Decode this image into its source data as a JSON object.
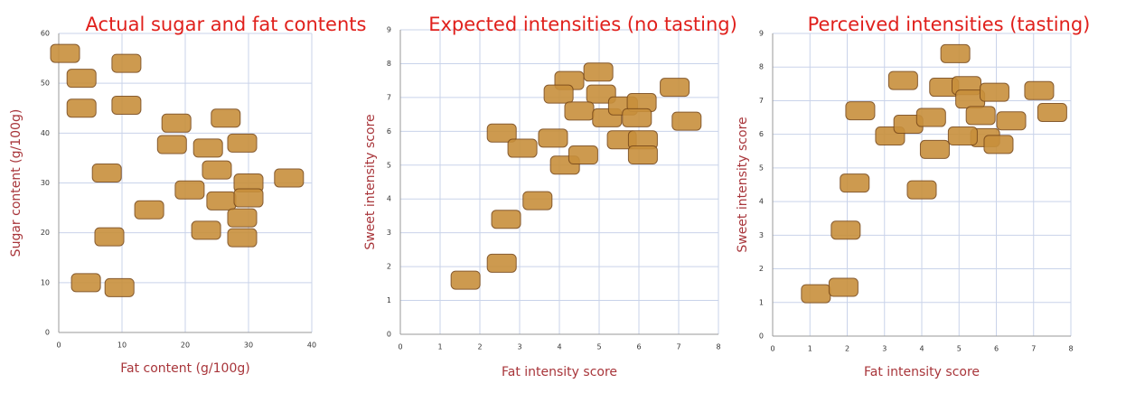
{
  "chart_data": [
    {
      "type": "scatter",
      "title": "Actual sugar and fat contents",
      "x_label": "Fat content (g/100g)",
      "y_label": "Sugar content (g/100g)",
      "xlim": [
        0,
        40
      ],
      "ylim": [
        0,
        60
      ],
      "xticks": [
        0,
        10,
        20,
        30,
        40
      ],
      "yticks": [
        0,
        10,
        20,
        30,
        40,
        50,
        60
      ],
      "grid": true,
      "color": "#c8903c",
      "series": [
        {
          "x": [
            1,
            10.7,
            3.6,
            10.7,
            3.6,
            18.6,
            26.4,
            17.9,
            23.6,
            29,
            7.6,
            25,
            30,
            36.4,
            20.7,
            25.7,
            30,
            14.3,
            29,
            23.3,
            29,
            8,
            4.3,
            9.6
          ],
          "y": [
            56,
            54,
            51,
            45.6,
            45,
            42,
            43,
            37.7,
            37,
            38,
            32,
            32.6,
            30,
            31,
            28.6,
            26.4,
            27,
            24.6,
            23,
            20.5,
            19,
            19.2,
            10,
            9
          ]
        }
      ]
    },
    {
      "type": "scatter",
      "title": "Expected intensities (no tasting)",
      "x_label": "Fat intensity score",
      "y_label": "Sweet intensity score",
      "xlim": [
        0,
        8
      ],
      "ylim": [
        0,
        9
      ],
      "xticks": [
        0,
        1,
        2,
        3,
        4,
        5,
        6,
        7,
        8
      ],
      "yticks": [
        0,
        1,
        2,
        3,
        4,
        5,
        6,
        7,
        8,
        9
      ],
      "grid": true,
      "color": "#c8903c",
      "series": [
        {
          "x": [
            1.64,
            2.55,
            2.66,
            3.45,
            2.55,
            3.07,
            3.84,
            4.14,
            4.6,
            4.25,
            4.98,
            3.98,
            5.05,
            4.5,
            5.2,
            5.6,
            6.07,
            5.57,
            6.1,
            6.1,
            6.9,
            7.2,
            5.95
          ],
          "y": [
            1.6,
            2.1,
            3.4,
            3.95,
            5.95,
            5.5,
            5.8,
            5.0,
            5.3,
            7.5,
            7.75,
            7.1,
            7.1,
            6.6,
            6.4,
            6.75,
            6.85,
            5.75,
            5.75,
            5.3,
            7.3,
            6.3,
            6.4
          ]
        }
      ]
    },
    {
      "type": "scatter",
      "title": "Perceived intensities (tasting)",
      "x_label": "Fat intensity score",
      "y_label": "Sweet intensity score",
      "xlim": [
        0,
        8
      ],
      "ylim": [
        0,
        9
      ],
      "xticks": [
        0,
        1,
        2,
        3,
        4,
        5,
        6,
        7,
        8
      ],
      "yticks": [
        0,
        1,
        2,
        3,
        4,
        5,
        6,
        7,
        8,
        9
      ],
      "grid": true,
      "color": "#c8903c",
      "series": [
        {
          "x": [
            1.16,
            1.9,
            1.96,
            2.2,
            2.35,
            3.5,
            4.9,
            3.15,
            3.64,
            4.25,
            4.0,
            4.35,
            4.6,
            5.2,
            5.3,
            5.95,
            5.58,
            6.4,
            7.15,
            7.5,
            5.7,
            6.06,
            5.1
          ],
          "y": [
            1.26,
            1.45,
            3.15,
            4.55,
            6.7,
            7.6,
            8.4,
            5.95,
            6.3,
            6.5,
            4.35,
            5.55,
            7.4,
            7.45,
            7.05,
            7.25,
            6.56,
            6.4,
            7.3,
            6.65,
            5.9,
            5.7,
            5.95
          ]
        }
      ]
    }
  ]
}
